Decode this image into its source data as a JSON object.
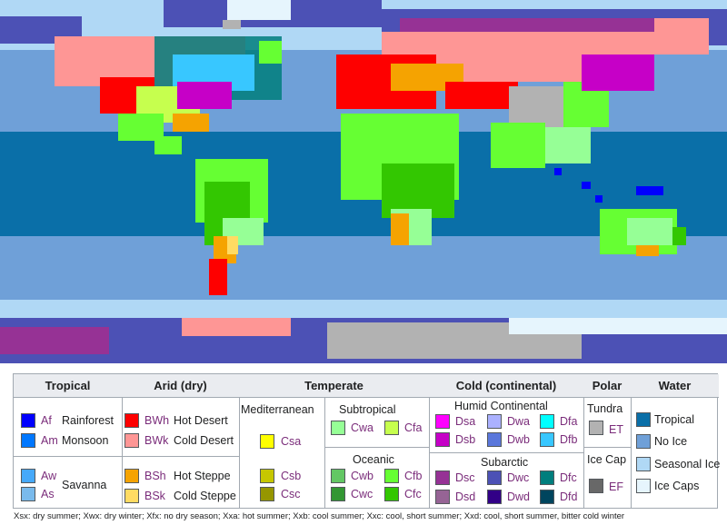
{
  "legend": {
    "tropical": {
      "header": "Tropical",
      "af": {
        "code": "Af",
        "name": "Rainforest",
        "color": "#0000fe"
      },
      "am": {
        "code": "Am",
        "name": "Monsoon",
        "color": "#0077ff"
      },
      "aw": {
        "code": "Aw",
        "color": "#46a9fa"
      },
      "as": {
        "code": "As",
        "color": "#79baec"
      },
      "savanna": "Savanna"
    },
    "arid": {
      "header": "Arid (dry)",
      "bwh": {
        "code": "BWh",
        "name": "Hot Desert",
        "color": "#fe0000"
      },
      "bwk": {
        "code": "BWk",
        "name": "Cold Desert",
        "color": "#fe9695"
      },
      "bsh": {
        "code": "BSh",
        "name": "Hot Steppe",
        "color": "#f5a301"
      },
      "bsk": {
        "code": "BSk",
        "name": "Cold Steppe",
        "color": "#ffdb63"
      }
    },
    "temperate": {
      "header": "Temperate",
      "mediterranean": "Mediterranean",
      "subtropical": "Subtropical",
      "oceanic": "Oceanic",
      "csa": {
        "code": "Csa",
        "color": "#ffff00"
      },
      "csb": {
        "code": "Csb",
        "color": "#c6c700"
      },
      "csc": {
        "code": "Csc",
        "color": "#969600"
      },
      "cwa": {
        "code": "Cwa",
        "color": "#96ff96"
      },
      "cfa": {
        "code": "Cfa",
        "color": "#c6ff4e"
      },
      "cwb": {
        "code": "Cwb",
        "color": "#63c764"
      },
      "cfb": {
        "code": "Cfb",
        "color": "#66ff33"
      },
      "cwc": {
        "code": "Cwc",
        "color": "#329633"
      },
      "cfc": {
        "code": "Cfc",
        "color": "#33c701"
      }
    },
    "cold": {
      "header": "Cold (continental)",
      "humid": "Humid Continental",
      "subarctic": "Subarctic",
      "dsa": {
        "code": "Dsa",
        "color": "#ff00fe"
      },
      "dwa": {
        "code": "Dwa",
        "color": "#abb1ff"
      },
      "dfa": {
        "code": "Dfa",
        "color": "#00ffff"
      },
      "dsb": {
        "code": "Dsb",
        "color": "#c600c7"
      },
      "dwb": {
        "code": "Dwb",
        "color": "#5a77db"
      },
      "dfb": {
        "code": "Dfb",
        "color": "#38c7ff"
      },
      "dsc": {
        "code": "Dsc",
        "color": "#963295"
      },
      "dwc": {
        "code": "Dwc",
        "color": "#4c51b5"
      },
      "dfc": {
        "code": "Dfc",
        "color": "#007e7d"
      },
      "dsd": {
        "code": "Dsd",
        "color": "#966495"
      },
      "dwd": {
        "code": "Dwd",
        "color": "#320087"
      },
      "dfd": {
        "code": "Dfd",
        "color": "#00455e"
      }
    },
    "polar": {
      "header": "Polar",
      "tundra": "Tundra",
      "icecap": "Ice Cap",
      "et": {
        "code": "ET",
        "color": "#b2b2b2"
      },
      "ef": {
        "code": "EF",
        "color": "#686868"
      }
    },
    "water": {
      "header": "Water",
      "tropical": {
        "name": "Tropical",
        "color": "#0a6fa8"
      },
      "noice": {
        "name": "No Ice",
        "color": "#6fa0d8"
      },
      "seasonal": {
        "name": "Seasonal Ice",
        "color": "#b0d8f5"
      },
      "caps": {
        "name": "Ice Caps",
        "color": "#e6f5fd"
      }
    }
  },
  "footnote": "Xsx: dry summer; Xwx: dry winter; Xfx: no dry season; Xxa: hot summer; Xxb: cool summer; Xxc: cool, short summer; Xxd: cool, short summer, bitter cold winter"
}
